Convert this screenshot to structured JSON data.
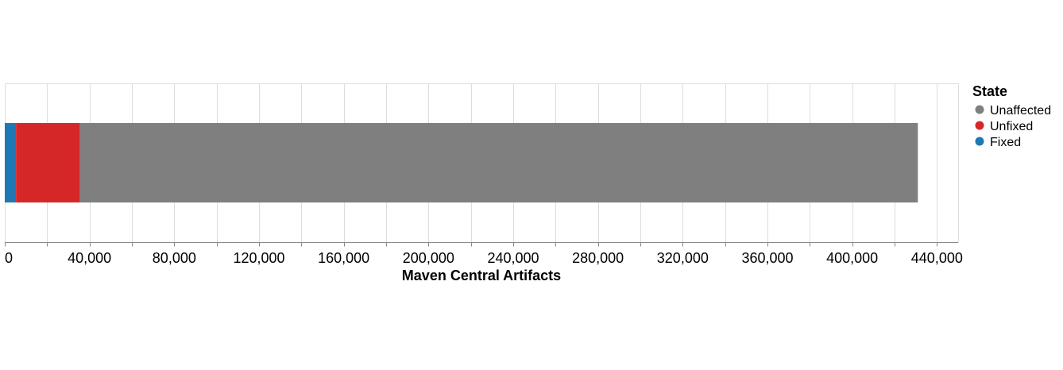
{
  "chart_data": {
    "type": "bar",
    "orientation": "horizontal",
    "stacked": true,
    "xlabel": "Maven Central Artifacts",
    "xlim": [
      0,
      450000
    ],
    "xticks": [
      0,
      40000,
      80000,
      120000,
      160000,
      200000,
      240000,
      280000,
      320000,
      360000,
      400000,
      440000
    ],
    "xtick_labels": [
      "0",
      "40,000",
      "80,000",
      "120,000",
      "160,000",
      "200,000",
      "240,000",
      "280,000",
      "320,000",
      "360,000",
      "400,000",
      "440,000"
    ],
    "grid": true,
    "series": [
      {
        "name": "Fixed",
        "value": 5300,
        "color": "#1f77b4"
      },
      {
        "name": "Unfixed",
        "value": 30200,
        "color": "#d62728"
      },
      {
        "name": "Unaffected",
        "value": 395500,
        "color": "#7f7f7f"
      }
    ],
    "legend": {
      "title": "State",
      "position": "right",
      "items": [
        {
          "label": "Unaffected",
          "color": "#7f7f7f"
        },
        {
          "label": "Unfixed",
          "color": "#d62728"
        },
        {
          "label": "Fixed",
          "color": "#1f77b4"
        }
      ]
    }
  }
}
